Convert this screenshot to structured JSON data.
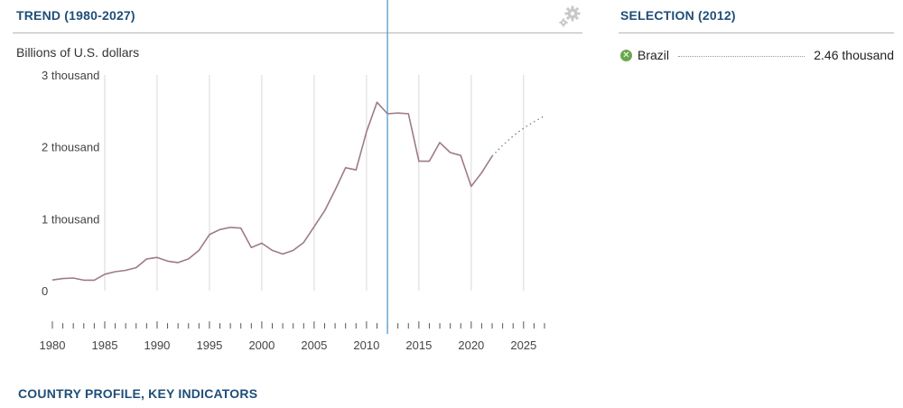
{
  "trend": {
    "title": "TREND (1980-2027)",
    "unit_label": "Billions of U.S. dollars"
  },
  "selection": {
    "title": "SELECTION (2012)",
    "items": [
      {
        "name": "Brazil",
        "value": "2.46 thousand",
        "color": "#6aa84f"
      }
    ]
  },
  "footer": {
    "link_label": "COUNTRY PROFILE, KEY INDICATORS"
  },
  "icons": {
    "settings": "gear-icon",
    "remove": "close-icon"
  },
  "colors": {
    "title": "#1f4e79",
    "line": "#9e7b86",
    "cursor": "#4a90c2",
    "grid": "#d9d9d9"
  },
  "chart_data": {
    "type": "line",
    "x_range": [
      1980,
      2027
    ],
    "ylim": [
      0,
      3000
    ],
    "y_ticks": [
      {
        "value": 0,
        "label": "0"
      },
      {
        "value": 1000,
        "label": "1 thousand"
      },
      {
        "value": 2000,
        "label": "2 thousand"
      },
      {
        "value": 3000,
        "label": "3 thousand"
      }
    ],
    "x_tick_labels": [
      1980,
      1985,
      1990,
      1995,
      2000,
      2005,
      2010,
      2015,
      2020,
      2025
    ],
    "vertical_grid_years": [
      1985,
      1990,
      1995,
      2000,
      2005,
      2010,
      2015,
      2020,
      2025
    ],
    "cursor_year": 2012,
    "series": [
      {
        "name": "Brazil",
        "x": [
          1980,
          1981,
          1982,
          1983,
          1984,
          1985,
          1986,
          1987,
          1988,
          1989,
          1990,
          1991,
          1992,
          1993,
          1994,
          1995,
          1996,
          1997,
          1998,
          1999,
          2000,
          2001,
          2002,
          2003,
          2004,
          2005,
          2006,
          2007,
          2008,
          2009,
          2010,
          2011,
          2012,
          2013,
          2014,
          2015,
          2016,
          2017,
          2018,
          2019,
          2020,
          2021,
          2022
        ],
        "y": [
          148,
          168,
          176,
          145,
          145,
          228,
          263,
          283,
          320,
          440,
          462,
          410,
          390,
          440,
          560,
          780,
          850,
          880,
          870,
          600,
          660,
          560,
          510,
          560,
          670,
          890,
          1110,
          1400,
          1710,
          1680,
          2210,
          2620,
          2460,
          2470,
          2460,
          1800,
          1800,
          2060,
          1920,
          1880,
          1450,
          1640,
          1870
        ],
        "projected_x": [
          2022,
          2023,
          2024,
          2025,
          2026,
          2027
        ],
        "projected_y": [
          1870,
          2020,
          2150,
          2260,
          2350,
          2430
        ]
      }
    ],
    "grid": true
  }
}
